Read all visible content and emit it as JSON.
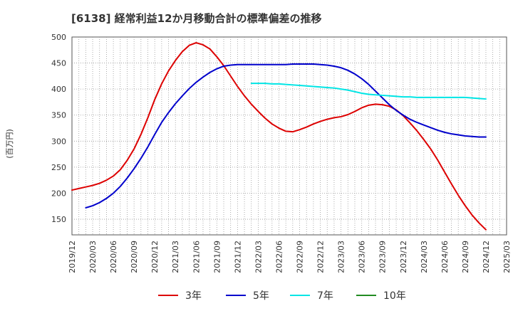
{
  "chart_data": {
    "type": "line",
    "title": "[6138]  経常利益12か月移動合計の標準偏差の推移",
    "ylabel": "(百万円)",
    "xlabel": "",
    "ylim": [
      120,
      500
    ],
    "yticks": [
      150,
      200,
      250,
      300,
      350,
      400,
      450,
      500
    ],
    "xticks": [
      "2019/12",
      "2020/03",
      "2020/06",
      "2020/09",
      "2020/12",
      "2021/03",
      "2021/06",
      "2021/09",
      "2021/12",
      "2022/03",
      "2022/06",
      "2022/09",
      "2022/12",
      "2023/03",
      "2023/06",
      "2023/09",
      "2023/12",
      "2024/03",
      "2024/06",
      "2024/09",
      "2024/12",
      "2025/03"
    ],
    "grid": true,
    "legend_position": "bottom",
    "series": [
      {
        "name": "3年",
        "color": "#dd0000",
        "points": [
          [
            "2019/12",
            206
          ],
          [
            "2020/01",
            209
          ],
          [
            "2020/02",
            212
          ],
          [
            "2020/03",
            215
          ],
          [
            "2020/04",
            219
          ],
          [
            "2020/05",
            225
          ],
          [
            "2020/06",
            233
          ],
          [
            "2020/07",
            245
          ],
          [
            "2020/08",
            263
          ],
          [
            "2020/09",
            285
          ],
          [
            "2020/10",
            313
          ],
          [
            "2020/11",
            345
          ],
          [
            "2020/12",
            380
          ],
          [
            "2021/01",
            410
          ],
          [
            "2021/02",
            435
          ],
          [
            "2021/03",
            455
          ],
          [
            "2021/04",
            472
          ],
          [
            "2021/05",
            484
          ],
          [
            "2021/06",
            489
          ],
          [
            "2021/07",
            485
          ],
          [
            "2021/08",
            477
          ],
          [
            "2021/09",
            462
          ],
          [
            "2021/10",
            445
          ],
          [
            "2021/11",
            425
          ],
          [
            "2021/12",
            405
          ],
          [
            "2022/01",
            387
          ],
          [
            "2022/02",
            371
          ],
          [
            "2022/03",
            357
          ],
          [
            "2022/04",
            344
          ],
          [
            "2022/05",
            333
          ],
          [
            "2022/06",
            325
          ],
          [
            "2022/07",
            319
          ],
          [
            "2022/08",
            318
          ],
          [
            "2022/09",
            322
          ],
          [
            "2022/10",
            327
          ],
          [
            "2022/11",
            333
          ],
          [
            "2022/12",
            338
          ],
          [
            "2023/01",
            342
          ],
          [
            "2023/02",
            345
          ],
          [
            "2023/03",
            347
          ],
          [
            "2023/04",
            351
          ],
          [
            "2023/05",
            357
          ],
          [
            "2023/06",
            364
          ],
          [
            "2023/07",
            369
          ],
          [
            "2023/08",
            371
          ],
          [
            "2023/09",
            370
          ],
          [
            "2023/10",
            367
          ],
          [
            "2023/11",
            360
          ],
          [
            "2023/12",
            349
          ],
          [
            "2024/01",
            335
          ],
          [
            "2024/02",
            320
          ],
          [
            "2024/03",
            303
          ],
          [
            "2024/04",
            285
          ],
          [
            "2024/05",
            264
          ],
          [
            "2024/06",
            241
          ],
          [
            "2024/07",
            218
          ],
          [
            "2024/08",
            196
          ],
          [
            "2024/09",
            176
          ],
          [
            "2024/10",
            158
          ],
          [
            "2024/11",
            143
          ],
          [
            "2024/12",
            130
          ]
        ]
      },
      {
        "name": "5年",
        "color": "#0000cc",
        "points": [
          [
            "2020/02",
            172
          ],
          [
            "2020/03",
            176
          ],
          [
            "2020/04",
            182
          ],
          [
            "2020/05",
            190
          ],
          [
            "2020/06",
            200
          ],
          [
            "2020/07",
            213
          ],
          [
            "2020/08",
            229
          ],
          [
            "2020/09",
            247
          ],
          [
            "2020/10",
            267
          ],
          [
            "2020/11",
            289
          ],
          [
            "2020/12",
            313
          ],
          [
            "2021/01",
            336
          ],
          [
            "2021/02",
            355
          ],
          [
            "2021/03",
            372
          ],
          [
            "2021/04",
            387
          ],
          [
            "2021/05",
            401
          ],
          [
            "2021/06",
            413
          ],
          [
            "2021/07",
            423
          ],
          [
            "2021/08",
            432
          ],
          [
            "2021/09",
            439
          ],
          [
            "2021/10",
            444
          ],
          [
            "2021/11",
            446
          ],
          [
            "2021/12",
            447
          ],
          [
            "2022/01",
            447
          ],
          [
            "2022/02",
            447
          ],
          [
            "2022/03",
            447
          ],
          [
            "2022/04",
            447
          ],
          [
            "2022/05",
            447
          ],
          [
            "2022/06",
            447
          ],
          [
            "2022/07",
            447
          ],
          [
            "2022/08",
            448
          ],
          [
            "2022/09",
            448
          ],
          [
            "2022/10",
            448
          ],
          [
            "2022/11",
            448
          ],
          [
            "2022/12",
            447
          ],
          [
            "2023/01",
            446
          ],
          [
            "2023/02",
            444
          ],
          [
            "2023/03",
            441
          ],
          [
            "2023/04",
            436
          ],
          [
            "2023/05",
            429
          ],
          [
            "2023/06",
            420
          ],
          [
            "2023/07",
            409
          ],
          [
            "2023/08",
            396
          ],
          [
            "2023/09",
            383
          ],
          [
            "2023/10",
            370
          ],
          [
            "2023/11",
            359
          ],
          [
            "2023/12",
            350
          ],
          [
            "2024/01",
            342
          ],
          [
            "2024/02",
            336
          ],
          [
            "2024/03",
            331
          ],
          [
            "2024/04",
            326
          ],
          [
            "2024/05",
            321
          ],
          [
            "2024/06",
            317
          ],
          [
            "2024/07",
            314
          ],
          [
            "2024/08",
            312
          ],
          [
            "2024/09",
            310
          ],
          [
            "2024/10",
            309
          ],
          [
            "2024/11",
            308
          ],
          [
            "2024/12",
            308
          ]
        ]
      },
      {
        "name": "7年",
        "color": "#00e5e5",
        "points": [
          [
            "2022/02",
            411
          ],
          [
            "2022/03",
            411
          ],
          [
            "2022/04",
            411
          ],
          [
            "2022/05",
            410
          ],
          [
            "2022/06",
            410
          ],
          [
            "2022/07",
            409
          ],
          [
            "2022/08",
            408
          ],
          [
            "2022/09",
            407
          ],
          [
            "2022/10",
            406
          ],
          [
            "2022/11",
            405
          ],
          [
            "2022/12",
            404
          ],
          [
            "2023/01",
            403
          ],
          [
            "2023/02",
            402
          ],
          [
            "2023/03",
            400
          ],
          [
            "2023/04",
            398
          ],
          [
            "2023/05",
            395
          ],
          [
            "2023/06",
            392
          ],
          [
            "2023/07",
            390
          ],
          [
            "2023/08",
            389
          ],
          [
            "2023/09",
            388
          ],
          [
            "2023/10",
            387
          ],
          [
            "2023/11",
            386
          ],
          [
            "2023/12",
            385
          ],
          [
            "2024/01",
            385
          ],
          [
            "2024/02",
            384
          ],
          [
            "2024/03",
            384
          ],
          [
            "2024/04",
            384
          ],
          [
            "2024/05",
            384
          ],
          [
            "2024/06",
            384
          ],
          [
            "2024/07",
            384
          ],
          [
            "2024/08",
            384
          ],
          [
            "2024/09",
            384
          ],
          [
            "2024/10",
            383
          ],
          [
            "2024/11",
            382
          ],
          [
            "2024/12",
            381
          ]
        ]
      },
      {
        "name": "10年",
        "color": "#228b22",
        "points": []
      }
    ]
  }
}
